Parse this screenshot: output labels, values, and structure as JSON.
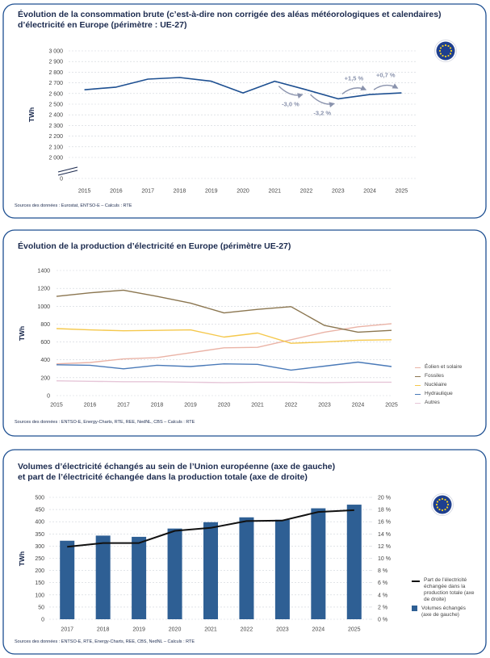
{
  "chart_data": [
    {
      "type": "line",
      "title": [
        "Évolution de la consommation brute (c’est-à-dire non corrigée des aléas météorologiques et calendaires)",
        "d’électricité en Europe (périmètre : UE-27)"
      ],
      "y_label": "TWh",
      "categories": [
        "2015",
        "2016",
        "2017",
        "2018",
        "2019",
        "2020",
        "2021",
        "2022",
        "2023",
        "2024",
        "2025"
      ],
      "series": [
        {
          "color": "#1d4f91",
          "values": [
            2635,
            2660,
            2735,
            2750,
            2715,
            2605,
            2715,
            2635,
            2550,
            2590,
            2605
          ]
        }
      ],
      "ylim": [
        0,
        3000
      ],
      "y_axis_break": [
        0,
        2000
      ],
      "yticks": [
        {
          "value": 3000,
          "label": "3 000"
        },
        {
          "value": 2900,
          "label": "2 900"
        },
        {
          "value": 2800,
          "label": "2 800"
        },
        {
          "value": 2700,
          "label": "2 700"
        },
        {
          "value": 2600,
          "label": "2 600"
        },
        {
          "value": 2500,
          "label": "2 500"
        },
        {
          "value": 2400,
          "label": "2 400"
        },
        {
          "value": 2300,
          "label": "2 300"
        },
        {
          "value": 2200,
          "label": "2 200"
        },
        {
          "value": 2100,
          "label": "2 100"
        },
        {
          "value": 2000,
          "label": "2 000"
        },
        0
      ],
      "grid": true,
      "annotations": [
        "-3,0 %",
        "-3,2 %",
        "+1,5 %",
        "+0,7 %"
      ],
      "sources": "Sources des données : Eurostat, ENTSO-E – Calculs : RTE"
    },
    {
      "type": "line",
      "title": [
        "Évolution de la production d’électricité en Europe (périmètre UE-27)"
      ],
      "y_label": "TWh",
      "x": [
        2015,
        2016,
        2017,
        2018,
        2019,
        2020,
        2021,
        2022,
        2023,
        2024,
        2025
      ],
      "xlim": [
        2015,
        2025
      ],
      "xticks": [
        2015,
        2016,
        2017,
        2018,
        2019,
        2020,
        2021,
        2022,
        2023,
        2024,
        2025
      ],
      "series": [
        {
          "name": "Éolien et solaire",
          "color": "#eab3a6",
          "values": [
            355,
            370,
            410,
            425,
            480,
            535,
            540,
            625,
            710,
            770,
            805
          ]
        },
        {
          "name": "Fossiles",
          "color": "#8b7650",
          "values": [
            1110,
            1150,
            1180,
            1110,
            1035,
            925,
            965,
            995,
            785,
            710,
            730
          ]
        },
        {
          "name": "Nucléaire",
          "color": "#f5c84c",
          "values": [
            750,
            735,
            725,
            730,
            735,
            655,
            700,
            585,
            600,
            620,
            625
          ]
        },
        {
          "name": "Hydraulique",
          "color": "#4a7ab8",
          "values": [
            345,
            340,
            300,
            340,
            325,
            355,
            350,
            285,
            330,
            375,
            325
          ]
        },
        {
          "name": "Autres",
          "color": "#e6c6d8",
          "values": [
            165,
            160,
            155,
            155,
            150,
            145,
            150,
            150,
            145,
            150,
            150
          ]
        }
      ],
      "ylim": [
        0,
        1400
      ],
      "yticks": [
        0,
        200,
        400,
        600,
        800,
        1000,
        1200,
        1400
      ],
      "grid": true,
      "legend": "right",
      "sources": "Sources des données : ENTSO-E, Energy-Charts, RTE, REE, NedNL, CBS – Calculs : RTE"
    },
    {
      "type": "combo",
      "title": [
        "Volumes d’électricité échangés au sein de l’Union européenne (axe de gauche)",
        "et part de l’électricité échangée dans la production totale (axe de droite)"
      ],
      "y_label": "TWh",
      "categories": [
        "2017",
        "2018",
        "2019",
        "2020",
        "2021",
        "2022",
        "2023",
        "2024",
        "2025"
      ],
      "series": [
        {
          "name": "Part de l’électricité échangée dans la production totale (axe de droite)",
          "type": "line",
          "axis": "y2",
          "color": "#111111",
          "values": [
            11.9,
            12.5,
            12.5,
            14.5,
            15.0,
            16.1,
            16.2,
            17.6,
            17.9
          ]
        },
        {
          "name": "Volumes échangés (axe de gauche)",
          "type": "bar",
          "color": "#2e5f94",
          "values": [
            322,
            343,
            338,
            372,
            398,
            418,
            408,
            455,
            470
          ]
        }
      ],
      "ylim": [
        0,
        500
      ],
      "yticks": [
        0,
        50,
        100,
        150,
        200,
        250,
        300,
        350,
        400,
        450,
        500
      ],
      "y2lim": [
        0,
        20
      ],
      "y2ticks": [
        {
          "value": 0,
          "label": "0 %"
        },
        {
          "value": 2,
          "label": "2 %"
        },
        {
          "value": 4,
          "label": "4 %"
        },
        {
          "value": 6,
          "label": "6 %"
        },
        {
          "value": 8,
          "label": "8 %"
        },
        {
          "value": 10,
          "label": "10 %"
        },
        {
          "value": 12,
          "label": "12 %"
        },
        {
          "value": 14,
          "label": "14 %"
        },
        {
          "value": 16,
          "label": "16 %"
        },
        {
          "value": 18,
          "label": "18 %"
        },
        {
          "value": 20,
          "label": "20 %"
        }
      ],
      "grid": true,
      "legend": "right",
      "sources": "Sources des données : ENTSO-E, RTE, Energy-Charts, REE, CBS, NedNL – Calculs : RTE"
    }
  ]
}
